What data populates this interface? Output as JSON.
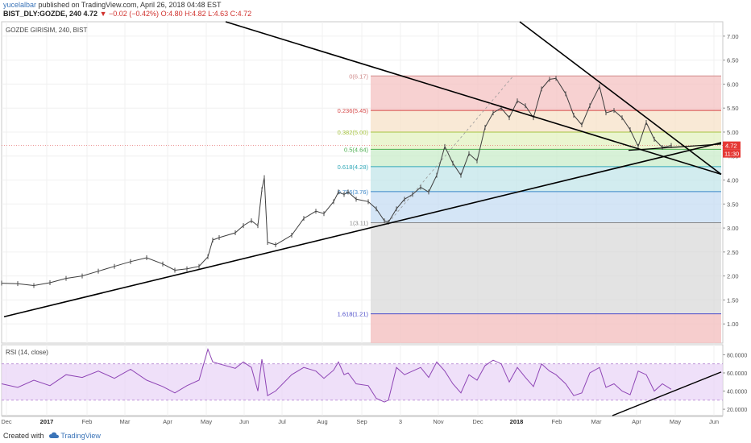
{
  "header": {
    "author": "yucelalbar",
    "published": "published on TradingView.com, April 26, 2018 04:48 EST",
    "symbol": "BIST_DLY:GOZDE, 240",
    "last": "4.72",
    "change": "▼ −0.02 (−0.42%)",
    "ohlc": "O:4.80 H:4.82 L:4.63 C:4.72"
  },
  "watermark": {
    "created_with": "Created with",
    "brand": "TradingView"
  },
  "chart_data": [
    {
      "type": "line",
      "title": "GOZDE GIRISIM, 240, BIST",
      "y_ticks": [
        "7.00",
        "6.50",
        "6.00",
        "5.50",
        "5.00",
        "4.50",
        "4.00",
        "3.50",
        "3.00",
        "2.50",
        "2.00",
        "1.50",
        "1.00"
      ],
      "ylim": [
        0.6,
        7.3
      ],
      "x_ticks": [
        "Dec",
        "2017",
        "Feb",
        "Mar",
        "Apr",
        "May",
        "Jun",
        "Jul",
        "Aug",
        "Sep",
        "3",
        "Nov",
        "Dec",
        "2018",
        "Feb",
        "Mar",
        "Apr",
        "May",
        "Jun"
      ],
      "last_price": "4.72",
      "countdown": "11:30",
      "series": [
        {
          "x": [
            0,
            20,
            40,
            60,
            80,
            100,
            120,
            140,
            160,
            180,
            200,
            215,
            230,
            245,
            256,
            262,
            270,
            290,
            300,
            310,
            318,
            323,
            326,
            330,
            340,
            360,
            375,
            390,
            400,
            412,
            418,
            425,
            430,
            440,
            455,
            465,
            475,
            480,
            490,
            500,
            510,
            520,
            530,
            540,
            550,
            560,
            570,
            580,
            590,
            600,
            610,
            620,
            630,
            640,
            650,
            660,
            670,
            680,
            688,
            700,
            710,
            720,
            730,
            742,
            750,
            760,
            770,
            780,
            790,
            800,
            810,
            820,
            831
          ],
          "y": [
            1.85,
            1.84,
            1.8,
            1.86,
            1.95,
            2.0,
            2.1,
            2.2,
            2.3,
            2.38,
            2.25,
            2.12,
            2.15,
            2.2,
            2.4,
            2.75,
            2.8,
            2.9,
            3.05,
            3.15,
            3.05,
            3.8,
            4.05,
            2.7,
            2.65,
            2.85,
            3.2,
            3.35,
            3.3,
            3.55,
            3.75,
            3.7,
            3.75,
            3.6,
            3.55,
            3.4,
            3.15,
            3.12,
            3.4,
            3.6,
            3.7,
            3.85,
            3.75,
            4.1,
            4.7,
            4.35,
            4.1,
            4.55,
            4.4,
            5.1,
            5.4,
            5.5,
            5.3,
            5.65,
            5.55,
            5.3,
            5.9,
            6.1,
            6.12,
            5.8,
            5.35,
            5.15,
            5.55,
            5.95,
            5.4,
            5.45,
            5.3,
            5.05,
            4.7,
            5.2,
            4.85,
            4.68,
            4.72
          ],
          "color": "#3d3d3d"
        }
      ],
      "fibonacci": [
        {
          "ratio": "0",
          "price": 6.17,
          "label": "0(6.17)"
        },
        {
          "ratio": "0.236",
          "price": 5.45,
          "label": "0.236(5.45)"
        },
        {
          "ratio": "0.382",
          "price": 5.0,
          "label": "0.382(5.00)"
        },
        {
          "ratio": "0.5",
          "price": 4.64,
          "label": "0.5(4.64)"
        },
        {
          "ratio": "0.618",
          "price": 4.28,
          "label": "0.618(4.28)"
        },
        {
          "ratio": "0.786",
          "price": 3.76,
          "label": "0.786(3.76)"
        },
        {
          "ratio": "1",
          "price": 3.11,
          "label": "1(3.11)"
        },
        {
          "ratio": "1.618",
          "price": 1.21,
          "label": "1.618(1.21)"
        }
      ]
    },
    {
      "type": "line",
      "title": "RSI (14, close)",
      "y_ticks": [
        "80.0000",
        "60.0000",
        "40.0000",
        "20.0000"
      ],
      "ylim": [
        13,
        91
      ],
      "band": [
        30,
        70
      ],
      "series": [
        {
          "x": [
            0,
            20,
            40,
            60,
            80,
            100,
            120,
            140,
            160,
            180,
            200,
            215,
            230,
            245,
            256,
            262,
            270,
            290,
            300,
            310,
            318,
            323,
            326,
            330,
            340,
            360,
            375,
            390,
            400,
            412,
            418,
            425,
            430,
            440,
            455,
            465,
            475,
            480,
            490,
            500,
            510,
            520,
            530,
            540,
            550,
            560,
            570,
            580,
            590,
            600,
            610,
            620,
            630,
            640,
            650,
            660,
            670,
            680,
            688,
            700,
            710,
            720,
            730,
            742,
            750,
            760,
            770,
            780,
            790,
            800,
            810,
            820,
            831
          ],
          "y": [
            48,
            44,
            52,
            46,
            58,
            55,
            62,
            54,
            64,
            52,
            45,
            38,
            46,
            52,
            86,
            72,
            70,
            65,
            72,
            66,
            40,
            75,
            60,
            35,
            40,
            58,
            66,
            62,
            54,
            63,
            72,
            58,
            60,
            48,
            46,
            32,
            28,
            30,
            66,
            58,
            62,
            66,
            55,
            72,
            62,
            48,
            38,
            58,
            52,
            68,
            74,
            70,
            50,
            66,
            55,
            45,
            70,
            62,
            58,
            48,
            35,
            38,
            60,
            66,
            44,
            48,
            40,
            36,
            62,
            58,
            40,
            48,
            42
          ],
          "color": "#8e45b5"
        }
      ]
    }
  ]
}
